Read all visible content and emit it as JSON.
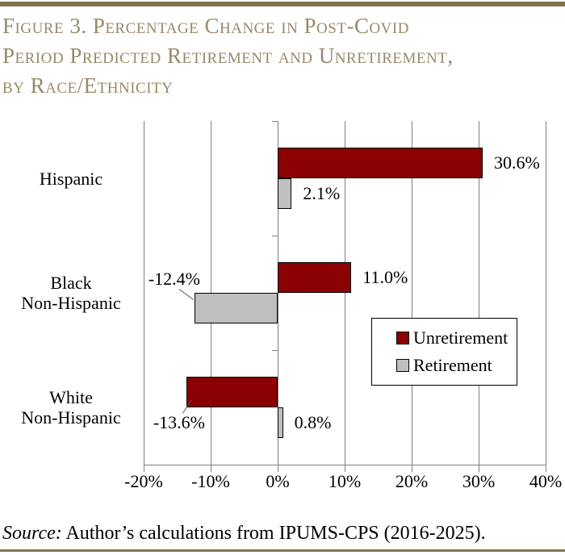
{
  "title": {
    "lines": [
      "Figure 3. Percentage Change in Post-Covid",
      "Period Predicted Retirement and Unretirement,",
      "by Race/Ethnicity"
    ]
  },
  "source": {
    "label": "Source:",
    "text": "Author’s calculations from IPUMS-CPS (2016-2025)."
  },
  "colors": {
    "title_text": "#9A886A",
    "rule": "#84734E",
    "unretirement": "#8B0000",
    "retirement": "#BFBFBF",
    "grid": "#808080",
    "leader": "#595959",
    "text": "#000000",
    "legend_border": "#000000"
  },
  "chart_data": {
    "type": "bar",
    "orientation": "horizontal",
    "title": "Percentage Change in Post-Covid Period Predicted Retirement and Unretirement, by Race/Ethnicity",
    "categories": [
      {
        "label": "Hispanic",
        "lines": [
          "Hispanic"
        ]
      },
      {
        "label": "Black Non-Hispanic",
        "lines": [
          "Black",
          "Non-Hispanic"
        ]
      },
      {
        "label": "White Non-Hispanic",
        "lines": [
          "White",
          "Non-Hispanic"
        ]
      }
    ],
    "series": [
      {
        "name": "Unretirement",
        "color": "#8B0000",
        "values": [
          30.6,
          11.0,
          -13.6
        ],
        "value_labels": [
          "30.6%",
          "11.0%",
          "-13.6%"
        ]
      },
      {
        "name": "Retirement",
        "color": "#BFBFBF",
        "values": [
          2.1,
          -12.4,
          0.8
        ],
        "value_labels": [
          "2.1%",
          "-12.4%",
          "0.8%"
        ]
      }
    ],
    "x_axis": {
      "min": -20,
      "max": 40,
      "tick_step": 10,
      "tick_labels": [
        "-20%",
        "-10%",
        "0%",
        "10%",
        "20%",
        "30%",
        "40%"
      ]
    },
    "legend": {
      "entries": [
        "Unretirement",
        "Retirement"
      ],
      "position": "inside-right"
    },
    "grid": true
  }
}
